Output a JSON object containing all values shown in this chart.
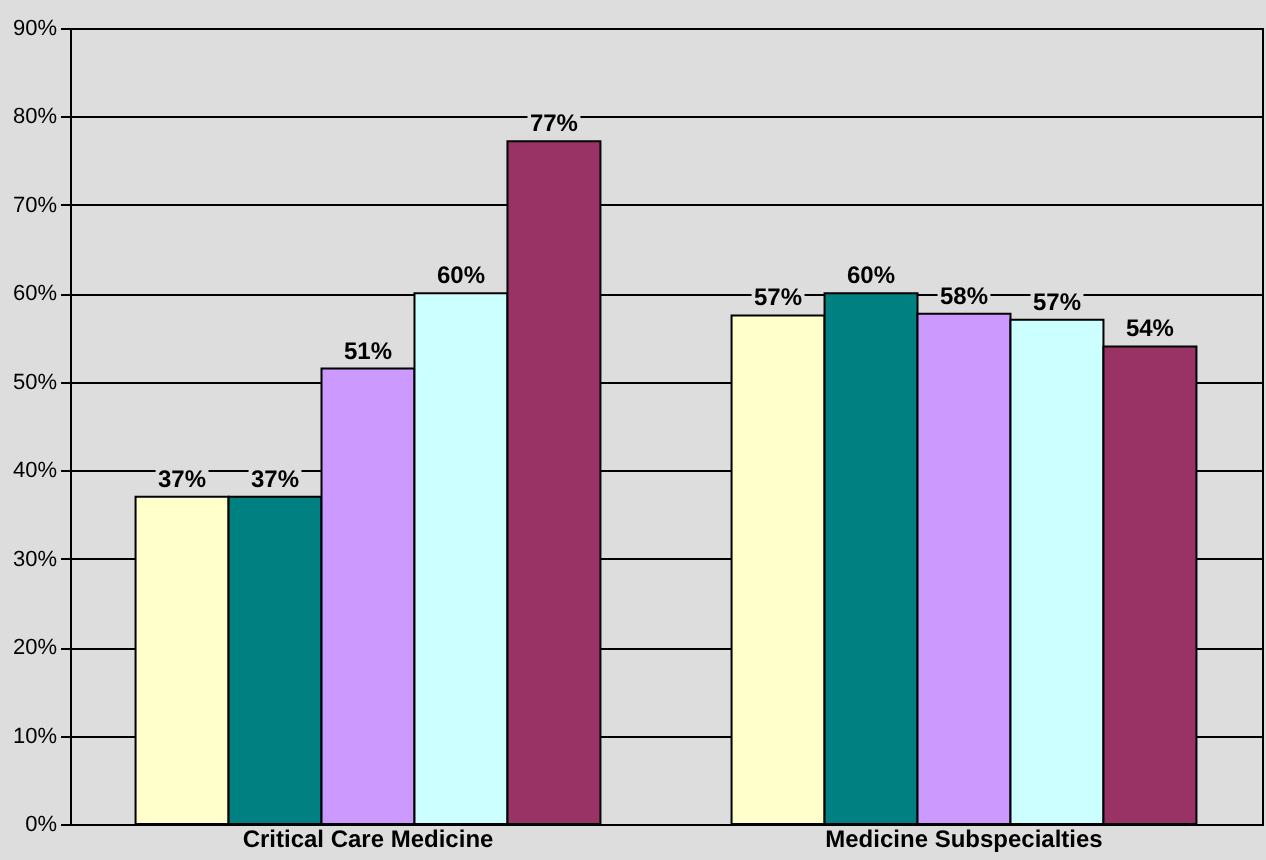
{
  "chart_data": {
    "type": "bar",
    "categories": [
      "Critical Care Medicine",
      "Medicine Subspecialties"
    ],
    "series": [
      {
        "color": "#ffffcc",
        "values": [
          37,
          57.5
        ],
        "value_labels": [
          "37%",
          "57%"
        ]
      },
      {
        "color": "#008080",
        "values": [
          37,
          60
        ],
        "value_labels": [
          "37%",
          "60%"
        ]
      },
      {
        "color": "#cc99ff",
        "values": [
          51.5,
          57.7
        ],
        "value_labels": [
          "51%",
          "58%"
        ]
      },
      {
        "color": "#ccffff",
        "values": [
          60,
          57
        ],
        "value_labels": [
          "60%",
          "57%"
        ]
      },
      {
        "color": "#993366",
        "values": [
          77.2,
          54
        ],
        "value_labels": [
          "77%",
          "54%"
        ]
      }
    ],
    "ylim": [
      0,
      90
    ],
    "yticks": [
      {
        "value": 0,
        "label": "0%"
      },
      {
        "value": 10,
        "label": "10%"
      },
      {
        "value": 20,
        "label": "20%"
      },
      {
        "value": 30,
        "label": "30%"
      },
      {
        "value": 40,
        "label": "40%"
      },
      {
        "value": 50,
        "label": "50%"
      },
      {
        "value": 60,
        "label": "60%"
      },
      {
        "value": 70,
        "label": "70%"
      },
      {
        "value": 80,
        "label": "80%"
      },
      {
        "value": 90,
        "label": "90%"
      }
    ],
    "grid": "y",
    "legend": false
  }
}
